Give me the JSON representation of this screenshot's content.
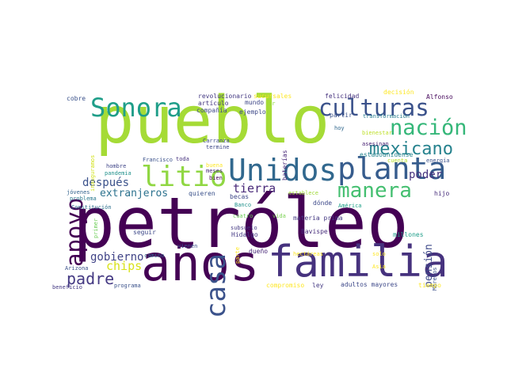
{
  "words": {
    "petroleo": {
      "text": "petróleo",
      "color": "#440154"
    },
    "pueblo": {
      "text": "pueblo",
      "color": "#a5db36"
    },
    "anos": {
      "text": "años",
      "color": "#440154"
    },
    "familia": {
      "text": "familia",
      "color": "#46327e"
    },
    "unidos": {
      "text": "Unidos",
      "color": "#31688e"
    },
    "planta": {
      "text": "planta",
      "color": "#365c8d"
    },
    "litio": {
      "text": "litio",
      "color": "#90d743"
    },
    "sonora": {
      "text": "Sonora",
      "color": "#1f9e89"
    },
    "culturas": {
      "text": "culturas",
      "color": "#3b528b"
    },
    "apoyo": {
      "text": "apoyo",
      "color": "#440154"
    },
    "casa": {
      "text": "casa",
      "color": "#3b528b"
    },
    "nacion": {
      "text": "nación",
      "color": "#35b779"
    },
    "manera": {
      "text": "manera",
      "color": "#44bf70"
    },
    "mexicano": {
      "text": "mexicano",
      "color": "#26828e"
    },
    "padre": {
      "text": "padre",
      "color": "#443983"
    },
    "despues": {
      "text": "después",
      "color": "#3b528b"
    },
    "extranjeros": {
      "text": "extranjeros",
      "color": "#2c728e"
    },
    "tierra": {
      "text": "tierra",
      "color": "#482878"
    },
    "poder": {
      "text": "poder",
      "color": "#46327e"
    },
    "gobierno": {
      "text": "gobierno",
      "color": "#414487"
    },
    "chips": {
      "text": "chips",
      "color": "#d8e219"
    },
    "pension": {
      "text": "pensión",
      "color": "#3e4989"
    },
    "revolucionario": {
      "text": "revolucionario",
      "color": "#443983"
    },
    "sucursales": {
      "text": "sucursales",
      "color": "#fde725"
    },
    "felicidad": {
      "text": "felicidad",
      "color": "#46327e"
    },
    "decision": {
      "text": "decisión",
      "color": "#fde725"
    },
    "alfonso": {
      "text": "Alfonso",
      "color": "#46085c"
    },
    "cobre": {
      "text": "cobre",
      "color": "#3b528b"
    },
    "articulo": {
      "text": "artículo",
      "color": "#453781"
    },
    "mundo": {
      "text": "mundo",
      "color": "#3f4788"
    },
    "ir": {
      "text": "ir",
      "color": "#8fd744"
    },
    "partir": {
      "text": "partir",
      "color": "#3b528b"
    },
    "transformacion": {
      "text": "transformación",
      "color": "#287c8e"
    },
    "compania": {
      "text": "compañía",
      "color": "#3e4989"
    },
    "ejemplo": {
      "text": "ejemplo",
      "color": "#3e4989"
    },
    "hoy": {
      "text": "hoy",
      "color": "#31688e"
    },
    "bienestar": {
      "text": "bienestar",
      "color": "#bddf26"
    },
    "inauguramos": {
      "text": "inauguramos",
      "color": "#d2e21b"
    },
    "carranza": {
      "text": "Carranza",
      "color": "#3e4989"
    },
    "termine": {
      "text": "termine",
      "color": "#3f4788"
    },
    "baterias": {
      "text": "baterías",
      "color": "#482878"
    },
    "asesinan": {
      "text": "asesinan",
      "color": "#482173"
    },
    "estadounidense": {
      "text": "estadounidense",
      "color": "#25848e"
    },
    "energia": {
      "text": "energía",
      "color": "#3b528b"
    },
    "francisco": {
      "text": "Francisco",
      "color": "#3b528b"
    },
    "toda": {
      "text": "toda",
      "color": "#46327e"
    },
    "cuenta": {
      "text": "cuenta",
      "color": "#b5de2b"
    },
    "hombre": {
      "text": "hombre",
      "color": "#404688"
    },
    "pandemia": {
      "text": "pandemia",
      "color": "#21918c"
    },
    "buena": {
      "text": "buena",
      "color": "#fde725"
    },
    "quieren": {
      "text": "quieren",
      "color": "#3b528b"
    },
    "meses": {
      "text": "meses",
      "color": "#482878"
    },
    "jovenes": {
      "text": "jóvenes",
      "color": "#33638d"
    },
    "problema": {
      "text": "problema",
      "color": "#2a788e"
    },
    "becas": {
      "text": "becas",
      "color": "#3f4788"
    },
    "establece": {
      "text": "establece",
      "color": "#a0da39"
    },
    "hijo": {
      "text": "hijo",
      "color": "#472d7b"
    },
    "constitucion": {
      "text": "Constitución",
      "color": "#2d708e"
    },
    "banco": {
      "text": "Banco",
      "color": "#21918c"
    },
    "cuatro": {
      "text": "cuatro",
      "color": "#6ccd5a"
    },
    "bien": {
      "text": "bien",
      "color": "#440154"
    },
    "vida": {
      "text": "vida",
      "color": "#7ad151"
    },
    "donde": {
      "text": "dónde",
      "color": "#3e4989"
    },
    "america": {
      "text": "América",
      "color": "#1fa088"
    },
    "primer": {
      "text": "primer",
      "color": "#6ece58"
    },
    "seguir": {
      "text": "seguir",
      "color": "#3e4989"
    },
    "subsuelo": {
      "text": "subsuelo",
      "color": "#443983"
    },
    "hidalgo": {
      "text": "Hidalgo",
      "color": "#443983"
    },
    "bavispe": {
      "text": "Bavispe",
      "color": "#472d7b"
    },
    "millones": {
      "text": "millones",
      "color": "#1f9e89"
    },
    "materia_prima": {
      "text": "materia prima",
      "color": "#443983"
    },
    "camino": {
      "text": "camino",
      "color": "#31688e"
    },
    "vienen": {
      "text": "vienen",
      "color": "#3b528b"
    },
    "parte": {
      "text": "parte",
      "color": "#fde725"
    },
    "dueno": {
      "text": "dueño",
      "color": "#482878"
    },
    "hectareas": {
      "text": "hectáreas",
      "color": "#fde725"
    },
    "solo": {
      "text": "solo",
      "color": "#fde725"
    },
    "morelos": {
      "text": "Morelos",
      "color": "#3b528b"
    },
    "arizona": {
      "text": "Arizona",
      "color": "#3b528b"
    },
    "asia": {
      "text": "Asia",
      "color": "#fde725"
    },
    "compromiso": {
      "text": "compromiso",
      "color": "#fde725"
    },
    "ley": {
      "text": "ley",
      "color": "#443983"
    },
    "adultos_mayores": {
      "text": "adultos mayores",
      "color": "#3e4989"
    },
    "tiempo": {
      "text": "tiempo",
      "color": "#fde725"
    },
    "beneficio": {
      "text": "beneficio",
      "color": "#443983"
    },
    "programa": {
      "text": "programa",
      "color": "#3b528b"
    }
  }
}
